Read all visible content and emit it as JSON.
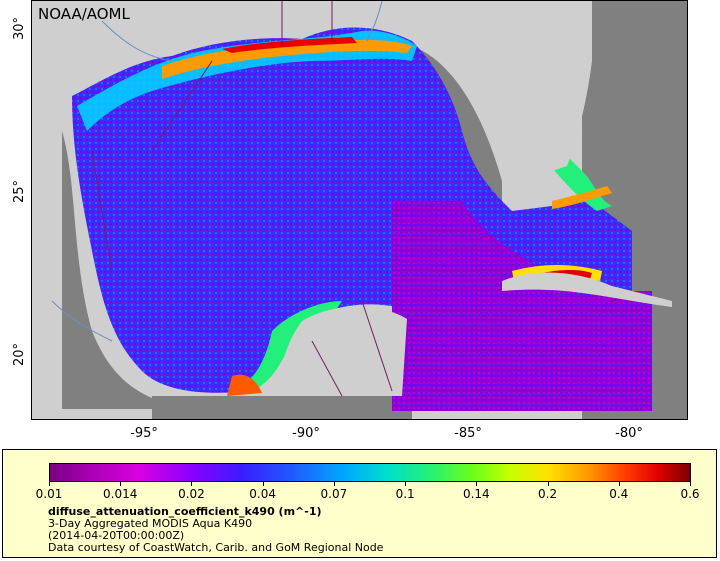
{
  "map": {
    "source_label": "NOAA/AOML",
    "latitude_ticks": [
      "30°",
      "25°",
      "20°"
    ],
    "longitude_ticks": [
      "-95°",
      "-90°",
      "-85°",
      "-80°"
    ],
    "land_color": "#cfcfcf",
    "nodata_color": "#808080",
    "border_color": "#7a1d5c",
    "river_color": "#6b8fb8"
  },
  "legend": {
    "colorbar_labels": [
      "0.01",
      "0.014",
      "0.02",
      "0.04",
      "0.07",
      "0.1",
      "0.14",
      "0.2",
      "0.4",
      "0.6"
    ],
    "variable": "diffuse_attenuation_coefficient_k490 (m^-1)",
    "dataset": "3-Day Aggregated MODIS Aqua K490",
    "time": "(2014-04-20T00:00:00Z)",
    "credit": "Data courtesy of CoastWatch, Carib. and GoM Regional Node",
    "background": "#ffffcc",
    "scale_colors": [
      "#7a0080",
      "#d800e0",
      "#3a1dff",
      "#00a8ff",
      "#22f07a",
      "#c8ff00",
      "#ffe000",
      "#ff9a00",
      "#e00000",
      "#7a0000"
    ]
  }
}
